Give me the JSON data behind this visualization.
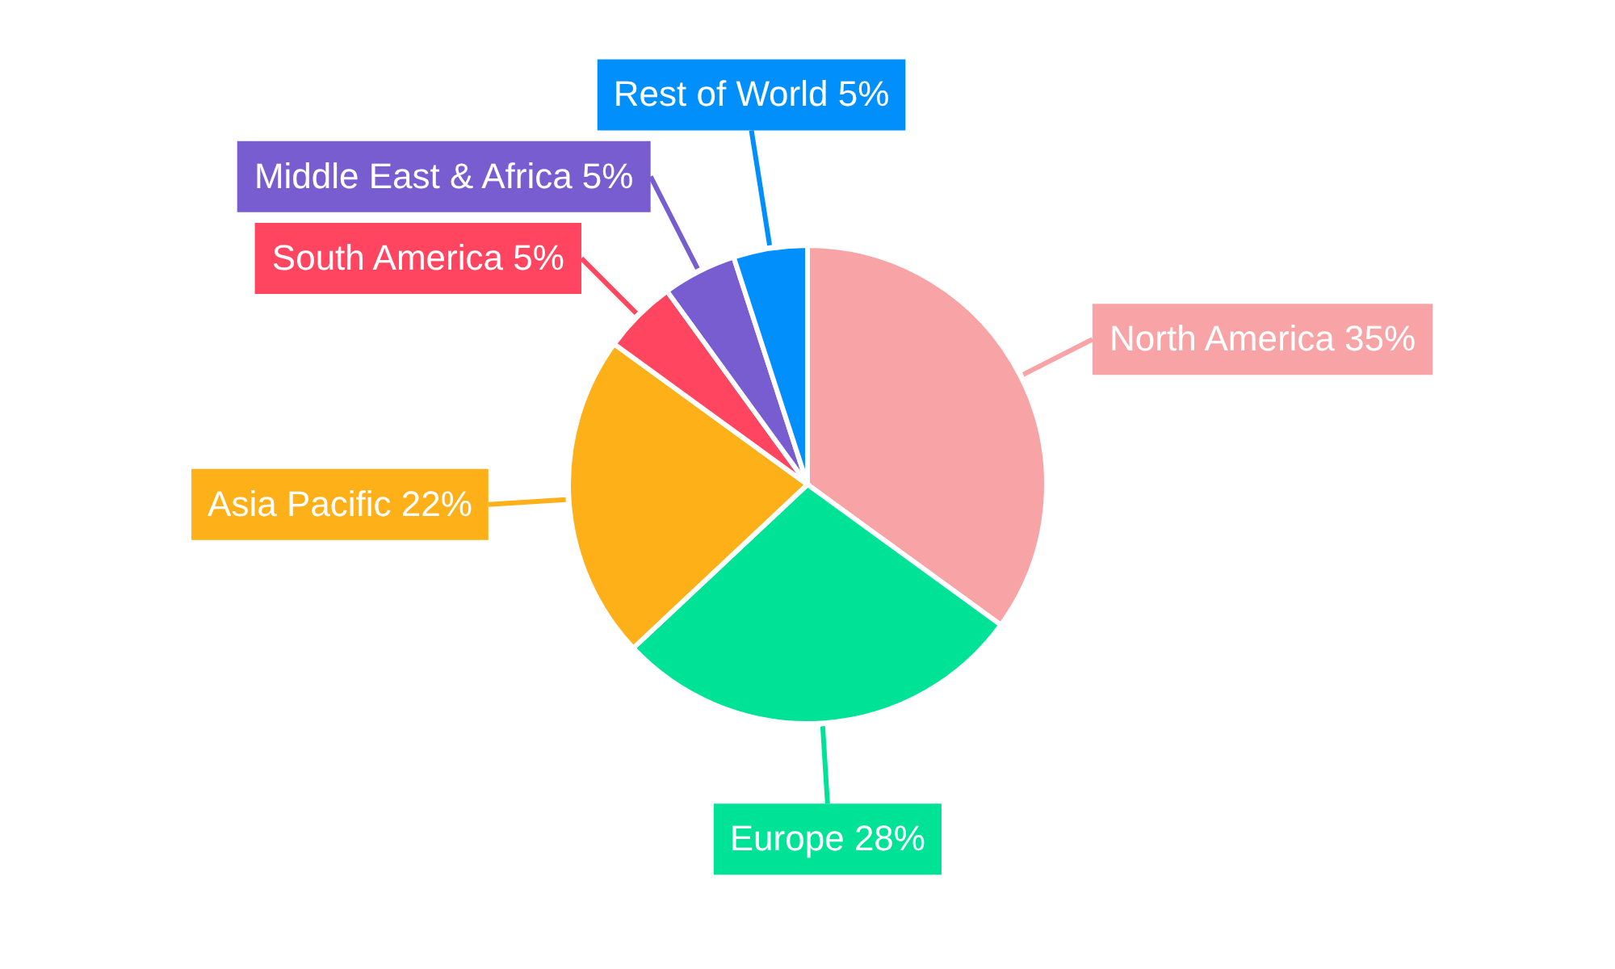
{
  "chart_data": {
    "type": "pie",
    "categories": [
      "North America",
      "Europe",
      "Asia Pacific",
      "South America",
      "Middle East & Africa",
      "Rest of World"
    ],
    "values": [
      35,
      28,
      22,
      5,
      5,
      5
    ],
    "value_labels": [
      "35%",
      "28%",
      "22%",
      "5%",
      "5%",
      "5%"
    ],
    "colors": [
      "#f8a4a6",
      "#00e396",
      "#feb019",
      "#ff4560",
      "#775dd0",
      "#008ffb"
    ]
  }
}
